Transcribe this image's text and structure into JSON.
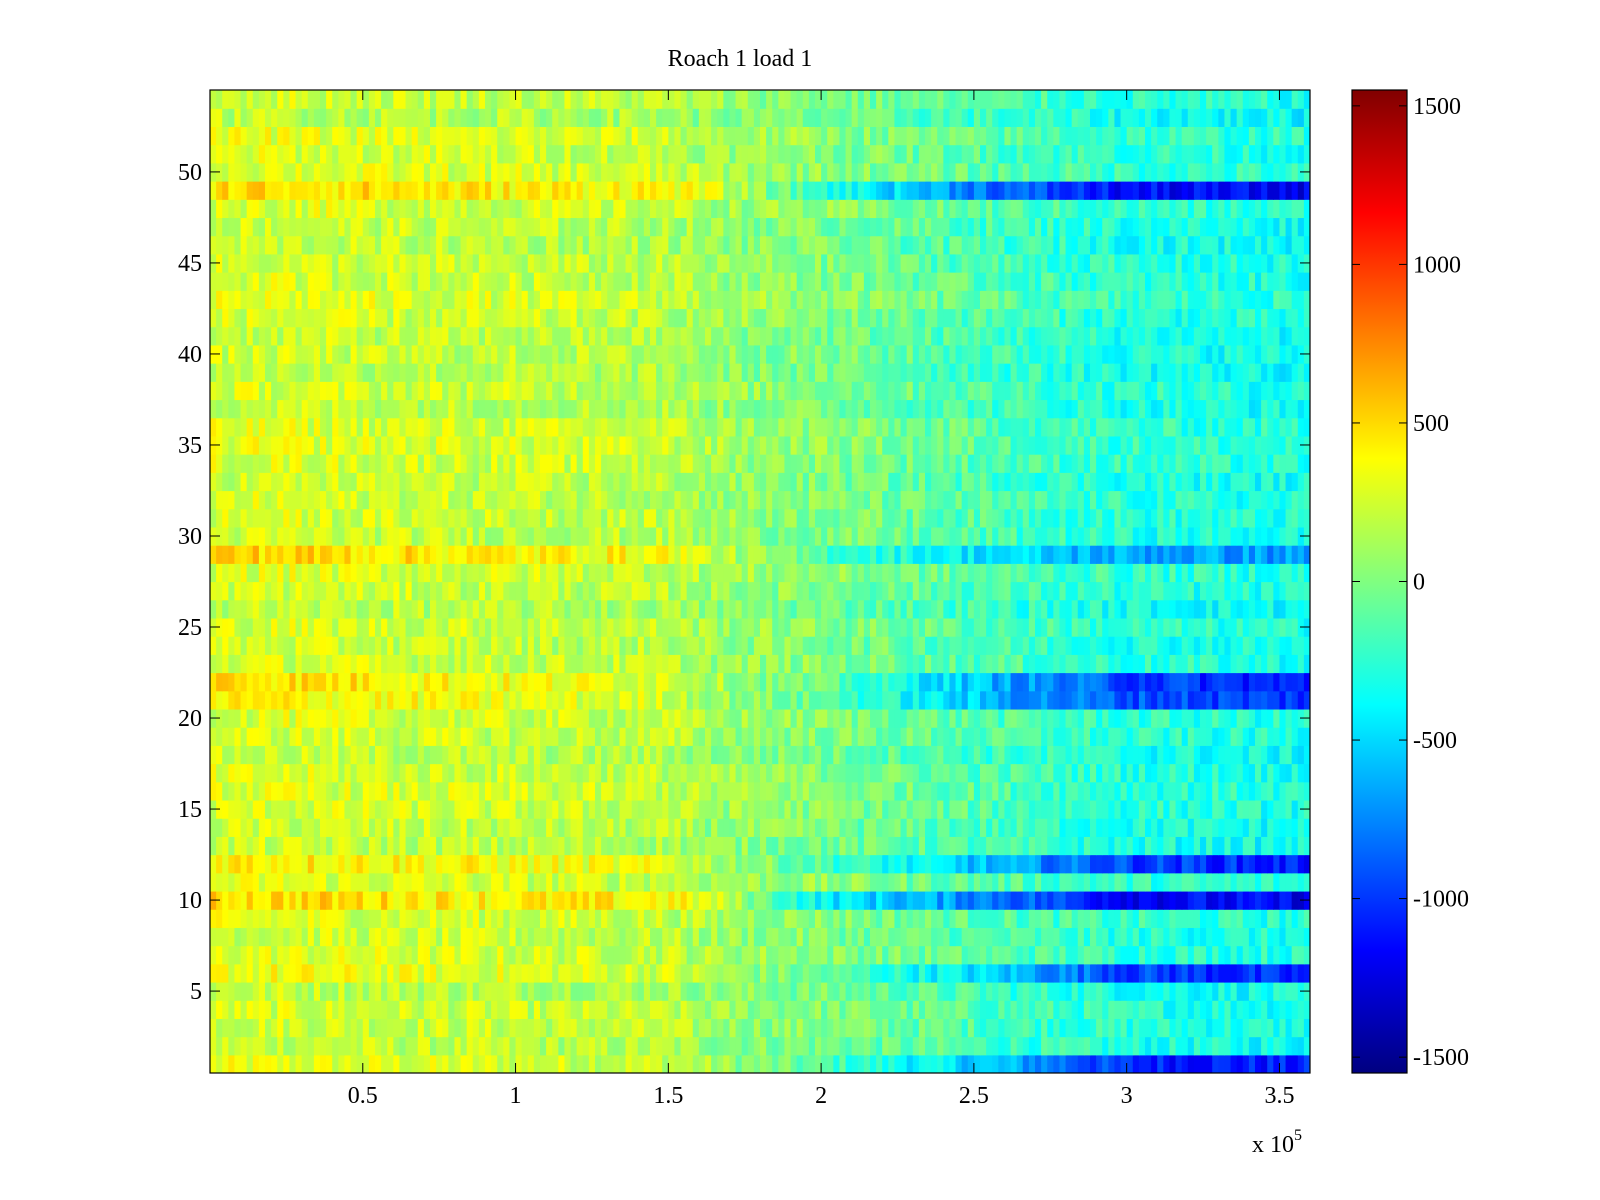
{
  "chart_data": {
    "type": "heatmap",
    "title": "Roach 1 load 1",
    "xlabel": "",
    "ylabel": "",
    "x_exponent_label": "x 10",
    "x_exponent": "5",
    "xlim": [
      0,
      360000
    ],
    "ylim": [
      0.5,
      54.5
    ],
    "n_rows": 54,
    "xticks": [
      {
        "value": 50000,
        "label": "0.5"
      },
      {
        "value": 100000,
        "label": "1"
      },
      {
        "value": 150000,
        "label": "1.5"
      },
      {
        "value": 200000,
        "label": "2"
      },
      {
        "value": 250000,
        "label": "2.5"
      },
      {
        "value": 300000,
        "label": "3"
      },
      {
        "value": 350000,
        "label": "3.5"
      }
    ],
    "yticks": [
      {
        "value": 5,
        "label": "5"
      },
      {
        "value": 10,
        "label": "10"
      },
      {
        "value": 15,
        "label": "15"
      },
      {
        "value": 20,
        "label": "20"
      },
      {
        "value": 25,
        "label": "25"
      },
      {
        "value": 30,
        "label": "30"
      },
      {
        "value": 35,
        "label": "35"
      },
      {
        "value": 40,
        "label": "40"
      },
      {
        "value": 45,
        "label": "45"
      },
      {
        "value": 50,
        "label": "50"
      }
    ],
    "colorbar": {
      "colormap": "jet",
      "range": [
        -1550,
        1550
      ],
      "ticks": [
        {
          "value": 1500,
          "label": "1500"
        },
        {
          "value": 1000,
          "label": "1000"
        },
        {
          "value": 500,
          "label": "500"
        },
        {
          "value": 0,
          "label": "0"
        },
        {
          "value": -500,
          "label": "-500"
        },
        {
          "value": -1000,
          "label": "-1000"
        },
        {
          "value": -1500,
          "label": "-1500"
        }
      ]
    },
    "segments_x": [
      0,
      20000,
      50000,
      100000,
      150000,
      165000,
      200000,
      260000,
      300000,
      360000
    ],
    "baseline_profile": [
      250,
      250,
      230,
      200,
      170,
      80,
      0,
      -180,
      -280,
      -330
    ],
    "strong_rows": [
      {
        "row": 49,
        "values": [
          500,
          500,
          480,
          420,
          400,
          250,
          -250,
          -850,
          -1150,
          -1200
        ]
      },
      {
        "row": 29,
        "values": [
          520,
          520,
          480,
          400,
          380,
          200,
          -150,
          -500,
          -650,
          -700
        ]
      },
      {
        "row": 22,
        "values": [
          500,
          500,
          450,
          350,
          300,
          150,
          -100,
          -650,
          -950,
          -1100
        ]
      },
      {
        "row": 21,
        "values": [
          400,
          400,
          380,
          300,
          250,
          100,
          -100,
          -650,
          -900,
          -1000
        ]
      },
      {
        "row": 12,
        "values": [
          450,
          450,
          420,
          350,
          300,
          150,
          -150,
          -650,
          -950,
          -1100
        ]
      },
      {
        "row": 10,
        "values": [
          500,
          500,
          480,
          420,
          400,
          250,
          -400,
          -800,
          -1150,
          -1200
        ]
      },
      {
        "row": 6,
        "values": [
          350,
          350,
          320,
          280,
          250,
          120,
          -100,
          -550,
          -950,
          -1100
        ]
      },
      {
        "row": 1,
        "values": [
          300,
          300,
          280,
          250,
          220,
          100,
          -150,
          -600,
          -1050,
          -1100
        ]
      }
    ],
    "grid": false,
    "legend": "colorbar-right"
  },
  "colors": {
    "axis": "#000000",
    "background": "#ffffff"
  }
}
